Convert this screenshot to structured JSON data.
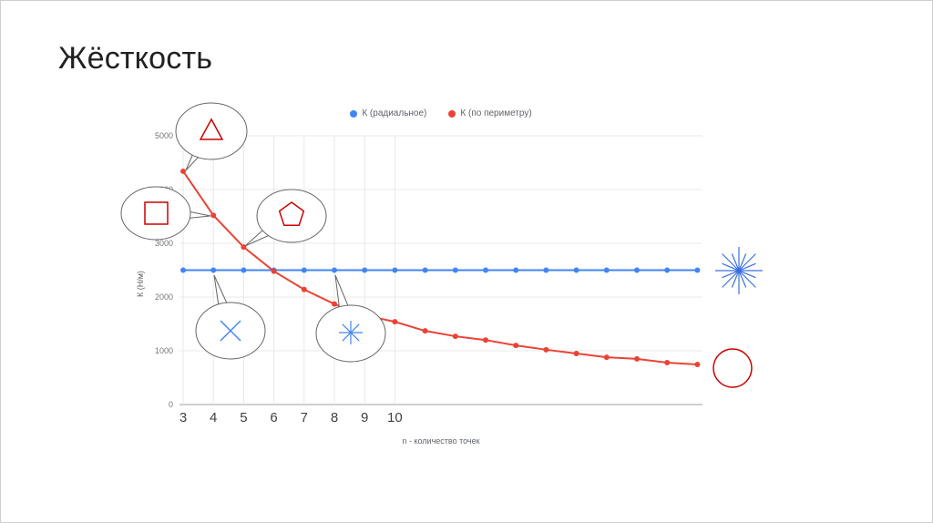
{
  "slide": {
    "title": "Жёсткость"
  },
  "chart_data": {
    "type": "line",
    "title": "",
    "xlabel": "n - количество точек",
    "ylabel": "К (Н/м)",
    "x": [
      3,
      4,
      5,
      6,
      7,
      8,
      9,
      10,
      11,
      12,
      13,
      14,
      15,
      16,
      17,
      18,
      19,
      20
    ],
    "series": [
      {
        "name": "К (радиальное)",
        "color": "#4285f4",
        "values": [
          2500,
          2500,
          2500,
          2500,
          2500,
          2500,
          2500,
          2500,
          2500,
          2500,
          2500,
          2500,
          2500,
          2500,
          2500,
          2500,
          2500,
          2500
        ]
      },
      {
        "name": "К (по периметру)",
        "color": "#ea4335",
        "values": [
          4340,
          3520,
          2930,
          2480,
          2140,
          1870,
          1660,
          1540,
          1370,
          1270,
          1200,
          1100,
          1020,
          950,
          880,
          850,
          780,
          745
        ]
      }
    ],
    "x_tick_labels": [
      3,
      4,
      5,
      6,
      7,
      8,
      9,
      10
    ],
    "y_ticks": [
      0,
      1000,
      2000,
      3000,
      4000,
      5000
    ],
    "ylim": [
      0,
      5000
    ],
    "grid": true,
    "legend_position": "top"
  },
  "annotations": {
    "colors": {
      "shape_red": "#cc0000",
      "shape_blue": "#4285f4",
      "starburst_blue": "#3b6fe0"
    },
    "callouts": [
      {
        "shape": "triangle",
        "color": "#cc0000",
        "anchor": "red series point n=3"
      },
      {
        "shape": "square",
        "color": "#cc0000",
        "anchor": "red series point n=4"
      },
      {
        "shape": "pentagon",
        "color": "#cc0000",
        "anchor": "red series point n=5"
      },
      {
        "shape": "x-cross",
        "color": "#4285f4",
        "anchor": "blue series point n=4"
      },
      {
        "shape": "asterisk",
        "color": "#4285f4",
        "anchor": "blue series point n=8"
      }
    ],
    "side_shapes": [
      {
        "shape": "starburst",
        "color": "#3b6fe0"
      },
      {
        "shape": "circle",
        "color": "#cc0000"
      }
    ]
  }
}
